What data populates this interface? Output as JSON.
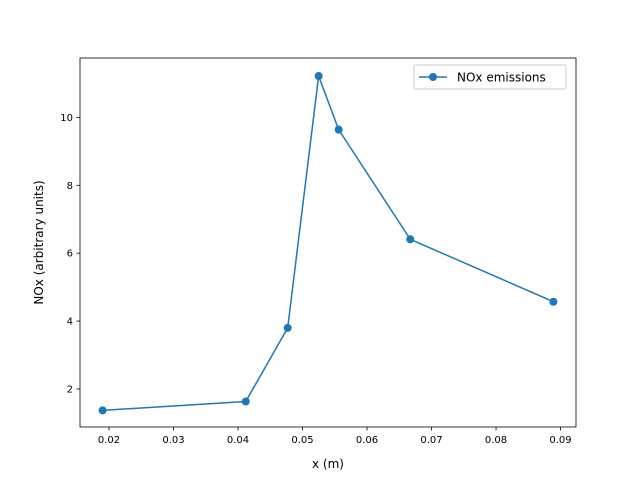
{
  "chart_data": {
    "type": "line",
    "title": "",
    "xlabel": "x (m)",
    "ylabel": "NOx (arbitrary units)",
    "xlim": [
      0.0155,
      0.0924
    ],
    "ylim": [
      0.88,
      11.75
    ],
    "xticks": [
      0.02,
      0.03,
      0.04,
      0.05,
      0.06,
      0.07,
      0.08,
      0.09
    ],
    "xtick_labels": [
      "0.02",
      "0.03",
      "0.04",
      "0.05",
      "0.06",
      "0.07",
      "0.08",
      "0.09"
    ],
    "yticks": [
      2,
      4,
      6,
      8,
      10
    ],
    "ytick_labels": [
      "2",
      "4",
      "6",
      "8",
      "10"
    ],
    "grid": false,
    "legend_position": "upper right",
    "series": [
      {
        "name": "NOx emissions",
        "color": "#1f77b4",
        "marker": "circle",
        "x": [
          0.019,
          0.0412,
          0.0477,
          0.0525,
          0.0556,
          0.0667,
          0.0889
        ],
        "y": [
          1.37,
          1.63,
          3.8,
          11.22,
          9.64,
          6.41,
          4.57
        ]
      }
    ]
  }
}
